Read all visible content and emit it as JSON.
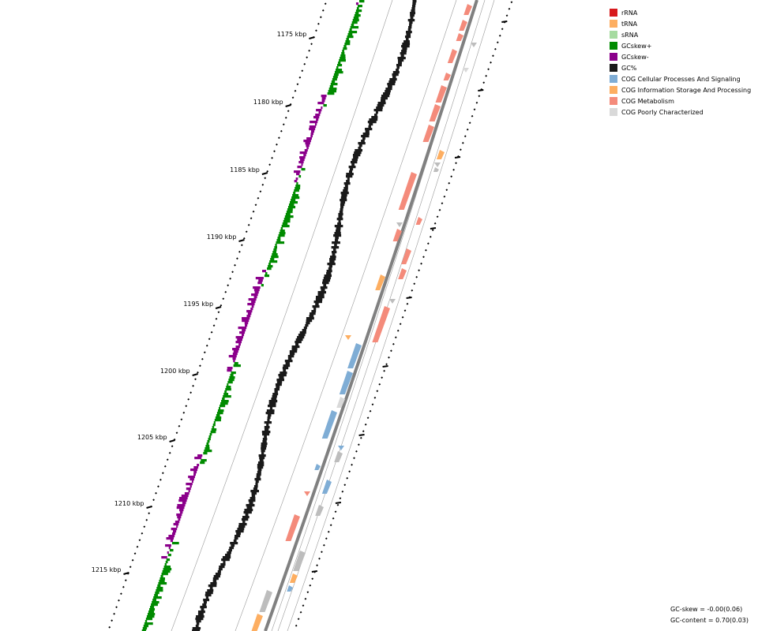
{
  "legend": [
    {
      "label": "rRNA",
      "color": "#d7191c"
    },
    {
      "label": "tRNA",
      "color": "#fdae61"
    },
    {
      "label": "sRNA",
      "color": "#a6dba0"
    },
    {
      "label": "GCskew+",
      "color": "#008b00"
    },
    {
      "label": "GCskew-",
      "color": "#8b008b"
    },
    {
      "label": "GC%",
      "color": "#1a1a1a"
    },
    {
      "label": "COG Cellular Processes And Signaling",
      "color": "#7fadd5"
    },
    {
      "label": "COG Information Storage And Processing",
      "color": "#fdae61"
    },
    {
      "label": "COG Metabolism",
      "color": "#f48b7b"
    },
    {
      "label": "COG Poorly Characterized",
      "color": "#d9d9d9"
    }
  ],
  "ticks": [
    {
      "label": "1175 kbp"
    },
    {
      "label": "1180 kbp"
    },
    {
      "label": "1185 kbp"
    },
    {
      "label": "1190 kbp"
    },
    {
      "label": "1195 kbp"
    },
    {
      "label": "1200 kbp"
    },
    {
      "label": "1205 kbp"
    },
    {
      "label": "1210 kbp"
    },
    {
      "label": "1215 kbp"
    }
  ],
  "stats": {
    "gc_skew": "GC-skew = -0.00(0.06)",
    "gc_content": "GC-content = 0.70(0.03)"
  },
  "colors": {
    "skew_pos": "#008b00",
    "skew_neg": "#8b008b",
    "gc": "#1a1a1a",
    "backbone": "#808080",
    "ring": "#999999"
  }
}
